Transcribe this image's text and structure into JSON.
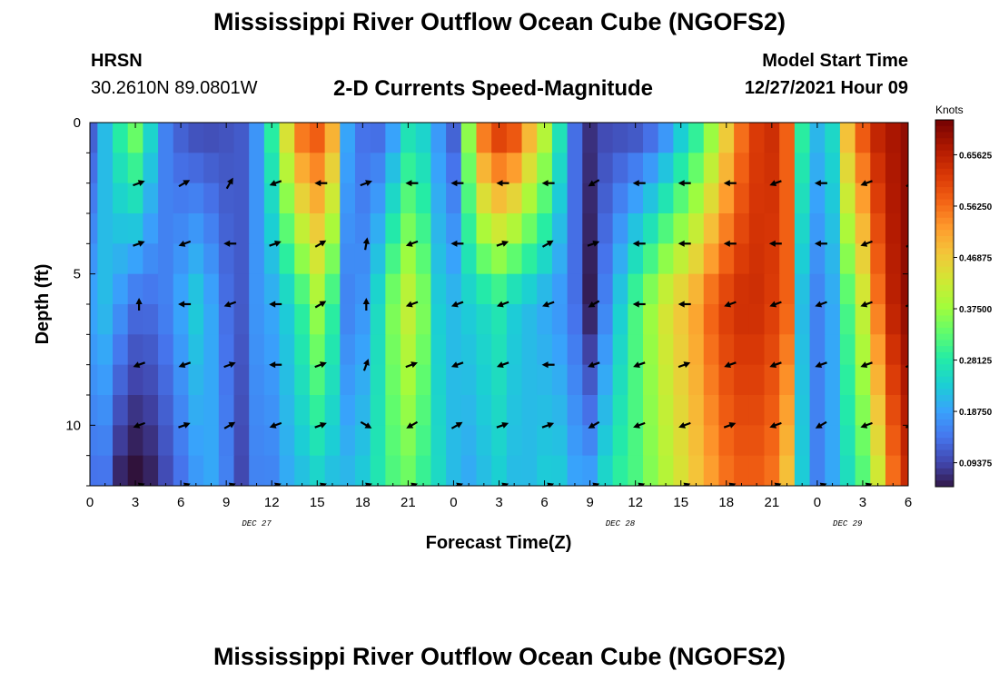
{
  "header": {
    "title": "Mississippi River Outflow Ocean Cube (NGOFS2)",
    "station_name": "HRSN",
    "station_coords": "30.2610N  89.0801W",
    "subtitle": "2-D Currents Speed-Magnitude",
    "model_start_label": "Model Start Time",
    "model_start_value": "12/27/2021 Hour 09"
  },
  "footer": {
    "title": "Mississippi River Outflow Ocean Cube (NGOFS2)"
  },
  "colors": {
    "palette": [
      "#30123b",
      "#4145ab",
      "#4675ed",
      "#39a2fc",
      "#1bcfd4",
      "#24eca6",
      "#61fc6c",
      "#a4fc3b",
      "#d1e834",
      "#f3c63a",
      "#fe9b2d",
      "#f36315",
      "#d93806",
      "#b11901",
      "#7a0402"
    ],
    "arrow": "#000000"
  },
  "chart_data": {
    "type": "heatmap",
    "title": "2-D Currents Speed-Magnitude",
    "xlabel": "Forecast Time(Z)",
    "ylabel": "Depth (ft)",
    "x_hours": [
      0,
      3,
      6,
      9,
      12,
      15,
      18,
      21,
      24,
      27,
      30,
      33,
      36,
      39,
      42,
      45,
      48,
      51,
      54
    ],
    "x_tick_labels": [
      "0",
      "3",
      "6",
      "9",
      "12",
      "15",
      "18",
      "21",
      "0",
      "3",
      "6",
      "9",
      "12",
      "15",
      "18",
      "21",
      "0",
      "3",
      "6"
    ],
    "date_labels": [
      {
        "hour": 11,
        "label": "DEC 27"
      },
      {
        "hour": 35,
        "label": "DEC 28"
      },
      {
        "hour": 50,
        "label": "DEC 29"
      }
    ],
    "ylim": [
      0,
      12
    ],
    "y_ticks": [
      0,
      5,
      10
    ],
    "colorbar": {
      "unit": "Knots",
      "vmin": 0.05,
      "vmax": 0.72,
      "ticks": [
        "0.09375",
        "0.18750",
        "0.28125",
        "0.37500",
        "0.46875",
        "0.56250",
        "0.65625"
      ]
    },
    "speed_profile": {
      "hours": [
        0,
        1,
        2,
        3,
        4,
        5,
        6,
        7,
        8,
        9,
        10,
        11,
        12,
        13,
        14,
        15,
        16,
        17,
        18,
        19,
        20,
        21,
        22,
        23,
        24,
        25,
        26,
        27,
        28,
        29,
        30,
        31,
        32,
        33,
        34,
        35,
        36,
        37,
        38,
        39,
        40,
        41,
        42,
        43,
        44,
        45,
        46,
        47,
        48,
        49,
        50,
        51,
        52,
        53,
        54
      ],
      "surface": [
        0.12,
        0.22,
        0.3,
        0.36,
        0.26,
        0.16,
        0.12,
        0.1,
        0.1,
        0.11,
        0.12,
        0.18,
        0.3,
        0.46,
        0.58,
        0.6,
        0.52,
        0.2,
        0.14,
        0.13,
        0.18,
        0.26,
        0.24,
        0.18,
        0.12,
        0.38,
        0.58,
        0.64,
        0.62,
        0.52,
        0.42,
        0.28,
        0.14,
        0.08,
        0.1,
        0.1,
        0.1,
        0.12,
        0.16,
        0.22,
        0.28,
        0.36,
        0.46,
        0.56,
        0.62,
        0.64,
        0.58,
        0.3,
        0.22,
        0.26,
        0.5,
        0.6,
        0.66,
        0.68,
        0.7
      ],
      "mid": [
        0.2,
        0.22,
        0.18,
        0.14,
        0.14,
        0.16,
        0.2,
        0.24,
        0.2,
        0.14,
        0.12,
        0.18,
        0.2,
        0.24,
        0.3,
        0.38,
        0.3,
        0.16,
        0.18,
        0.26,
        0.36,
        0.42,
        0.36,
        0.24,
        0.22,
        0.24,
        0.26,
        0.28,
        0.24,
        0.22,
        0.2,
        0.18,
        0.14,
        0.06,
        0.16,
        0.24,
        0.32,
        0.38,
        0.44,
        0.48,
        0.52,
        0.58,
        0.62,
        0.64,
        0.64,
        0.62,
        0.58,
        0.22,
        0.16,
        0.2,
        0.32,
        0.42,
        0.56,
        0.66,
        0.7
      ],
      "bottom": [
        0.14,
        0.14,
        0.06,
        0.04,
        0.06,
        0.1,
        0.14,
        0.18,
        0.2,
        0.16,
        0.1,
        0.16,
        0.16,
        0.2,
        0.22,
        0.24,
        0.22,
        0.22,
        0.24,
        0.28,
        0.32,
        0.34,
        0.3,
        0.26,
        0.22,
        0.2,
        0.22,
        0.24,
        0.22,
        0.22,
        0.24,
        0.24,
        0.2,
        0.2,
        0.26,
        0.3,
        0.32,
        0.36,
        0.4,
        0.44,
        0.48,
        0.52,
        0.56,
        0.58,
        0.58,
        0.56,
        0.48,
        0.24,
        0.16,
        0.2,
        0.26,
        0.32,
        0.42,
        0.56,
        0.64
      ]
    },
    "vectors": {
      "depths_ft": [
        2,
        4,
        6,
        8,
        10,
        12
      ],
      "hours": [
        3,
        6,
        9,
        12,
        15,
        18,
        21,
        24,
        27,
        30,
        33,
        36,
        39,
        42,
        45,
        48,
        51,
        54
      ],
      "directions_deg": [
        [
          20,
          30,
          60,
          200,
          180,
          20,
          180,
          180,
          180,
          180,
          210,
          180,
          180,
          180,
          200,
          180,
          200,
          30
        ],
        [
          20,
          200,
          180,
          20,
          30,
          80,
          200,
          180,
          20,
          30,
          20,
          180,
          180,
          180,
          180,
          180,
          200,
          30
        ],
        [
          90,
          180,
          200,
          180,
          30,
          90,
          200,
          200,
          200,
          200,
          210,
          180,
          180,
          200,
          200,
          200,
          200,
          20
        ],
        [
          200,
          200,
          20,
          180,
          20,
          70,
          20,
          200,
          200,
          180,
          200,
          200,
          20,
          200,
          200,
          200,
          200,
          20
        ],
        [
          200,
          20,
          30,
          200,
          20,
          330,
          210,
          30,
          20,
          20,
          210,
          200,
          200,
          20,
          200,
          210,
          200,
          20
        ],
        [
          20,
          20,
          20,
          20,
          20,
          20,
          20,
          20,
          20,
          20,
          20,
          20,
          20,
          20,
          20,
          20,
          20,
          20
        ]
      ]
    }
  }
}
